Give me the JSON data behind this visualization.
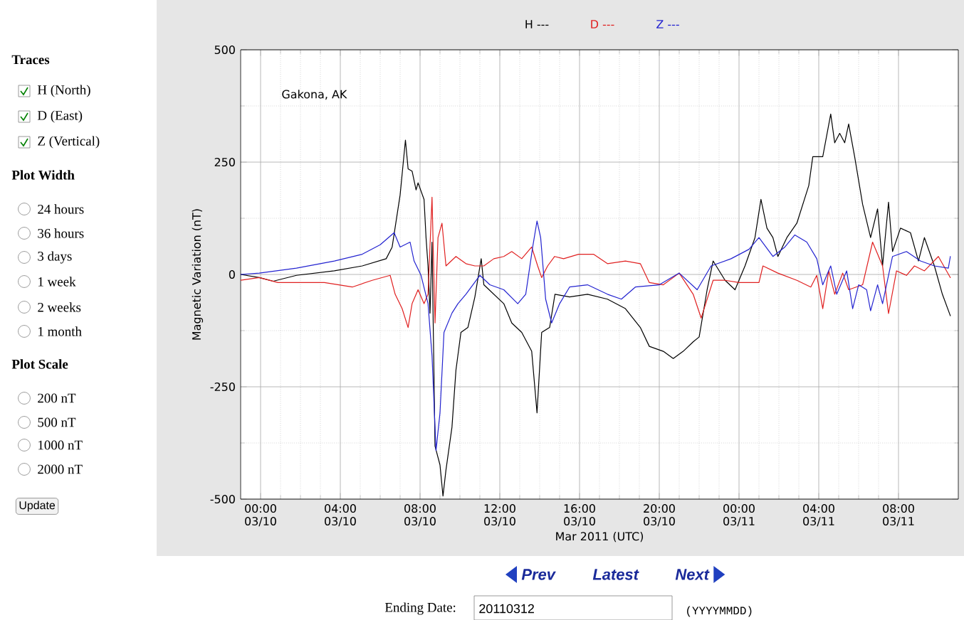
{
  "chart_data": [
    {
      "type": "line",
      "xlabel": "Mar 2011 (UTC)",
      "ylabel": "Magnetic Variation (nT)",
      "annotations": [
        "Gakona, AK"
      ],
      "xlim": [
        "2011-03-09T23:00",
        "2011-03-11T11:00"
      ],
      "ylim": [
        -500,
        500
      ],
      "xticks": [
        {
          "value": "2011-03-10T00:00",
          "label": "00:00 03/10"
        },
        {
          "value": "2011-03-10T04:00",
          "label": "04:00 03/10"
        },
        {
          "value": "2011-03-10T08:00",
          "label": "08:00 03/10"
        },
        {
          "value": "2011-03-10T12:00",
          "label": "12:00 03/10"
        },
        {
          "value": "2011-03-10T16:00",
          "label": "16:00 03/10"
        },
        {
          "value": "2011-03-10T20:00",
          "label": "20:00 03/10"
        },
        {
          "value": "2011-03-11T00:00",
          "label": "00:00 03/11"
        },
        {
          "value": "2011-03-11T04:00",
          "label": "04:00 03/11"
        },
        {
          "value": "2011-03-11T08:00",
          "label": "08:00 03/11"
        }
      ],
      "yticks": [
        -500,
        -250,
        0,
        250,
        500
      ],
      "grid": true,
      "legend": "top",
      "series": [
        {
          "name": "H ---",
          "color": "#000000",
          "x": [
            "2011-03-09T23:00",
            "2011-03-09T23:56",
            "2011-03-10T00:38",
            "2011-03-10T01:48",
            "2011-03-10T03:42",
            "2011-03-10T05:06",
            "2011-03-10T06:18",
            "2011-03-10T06:36",
            "2011-03-10T07:00",
            "2011-03-10T07:16",
            "2011-03-10T07:24",
            "2011-03-10T07:36",
            "2011-03-10T07:48",
            "2011-03-10T07:54",
            "2011-03-10T08:12",
            "2011-03-10T08:18",
            "2011-03-10T08:24",
            "2011-03-10T08:30",
            "2011-03-10T08:36",
            "2011-03-10T08:45",
            "2011-03-10T09:00",
            "2011-03-10T09:09",
            "2011-03-10T09:18",
            "2011-03-10T09:36",
            "2011-03-10T09:48",
            "2011-03-10T10:03",
            "2011-03-10T10:24",
            "2011-03-10T10:45",
            "2011-03-10T11:04",
            "2011-03-10T11:12",
            "2011-03-10T11:42",
            "2011-03-10T12:12",
            "2011-03-10T12:36",
            "2011-03-10T13:06",
            "2011-03-10T13:36",
            "2011-03-10T13:52",
            "2011-03-10T14:06",
            "2011-03-10T14:30",
            "2011-03-10T14:46",
            "2011-03-10T15:30",
            "2011-03-10T16:24",
            "2011-03-10T17:24",
            "2011-03-10T18:18",
            "2011-03-10T19:03",
            "2011-03-10T19:30",
            "2011-03-10T20:12",
            "2011-03-10T20:42",
            "2011-03-10T21:12",
            "2011-03-10T21:42",
            "2011-03-10T22:00",
            "2011-03-10T22:24",
            "2011-03-10T22:42",
            "2011-03-10T23:18",
            "2011-03-10T23:48",
            "2011-03-11T00:18",
            "2011-03-11T00:48",
            "2011-03-11T01:06",
            "2011-03-11T01:24",
            "2011-03-11T01:42",
            "2011-03-11T01:57",
            "2011-03-11T02:24",
            "2011-03-11T02:54",
            "2011-03-11T03:30",
            "2011-03-11T03:42",
            "2011-03-11T04:12",
            "2011-03-11T04:36",
            "2011-03-11T04:48",
            "2011-03-11T05:03",
            "2011-03-11T05:18",
            "2011-03-11T05:30",
            "2011-03-11T05:48",
            "2011-03-11T06:12",
            "2011-03-11T06:36",
            "2011-03-11T06:57",
            "2011-03-11T07:12",
            "2011-03-11T07:30",
            "2011-03-11T07:42",
            "2011-03-11T08:06",
            "2011-03-11T08:36",
            "2011-03-11T09:00",
            "2011-03-11T09:18",
            "2011-03-11T09:48",
            "2011-03-11T10:12",
            "2011-03-11T10:36"
          ],
          "values": [
            0,
            -7,
            -15,
            -2,
            8,
            19,
            35,
            61,
            177,
            299,
            235,
            230,
            188,
            204,
            167,
            82,
            19,
            -86,
            72,
            -382,
            -424,
            -493,
            -435,
            -340,
            -213,
            -129,
            -118,
            -50,
            35,
            -23,
            -44,
            -65,
            -108,
            -129,
            -171,
            -308,
            -129,
            -118,
            -44,
            -50,
            -44,
            -55,
            -76,
            -118,
            -160,
            -171,
            -187,
            -171,
            -150,
            -139,
            -34,
            30,
            -13,
            -34,
            19,
            82,
            167,
            103,
            82,
            40,
            82,
            114,
            198,
            262,
            262,
            357,
            293,
            314,
            293,
            335,
            262,
            156,
            82,
            146,
            19,
            161,
            51,
            103,
            93,
            30,
            82,
            19,
            -44,
            -92
          ]
        },
        {
          "name": "D ---",
          "color": "#e02020",
          "x": [
            "2011-03-09T23:00",
            "2011-03-09T23:56",
            "2011-03-10T00:52",
            "2011-03-10T01:48",
            "2011-03-10T03:12",
            "2011-03-10T04:36",
            "2011-03-10T05:36",
            "2011-03-10T06:30",
            "2011-03-10T06:45",
            "2011-03-10T07:06",
            "2011-03-10T07:24",
            "2011-03-10T07:36",
            "2011-03-10T07:54",
            "2011-03-10T08:12",
            "2011-03-10T08:24",
            "2011-03-10T08:36",
            "2011-03-10T08:45",
            "2011-03-10T08:54",
            "2011-03-10T09:06",
            "2011-03-10T09:18",
            "2011-03-10T09:48",
            "2011-03-10T10:18",
            "2011-03-10T10:45",
            "2011-03-10T11:12",
            "2011-03-10T11:42",
            "2011-03-10T12:12",
            "2011-03-10T12:36",
            "2011-03-10T13:06",
            "2011-03-10T13:36",
            "2011-03-10T13:54",
            "2011-03-10T14:06",
            "2011-03-10T14:24",
            "2011-03-10T14:45",
            "2011-03-10T15:12",
            "2011-03-10T15:57",
            "2011-03-10T16:42",
            "2011-03-10T17:24",
            "2011-03-10T18:18",
            "2011-03-10T19:03",
            "2011-03-10T19:30",
            "2011-03-10T20:12",
            "2011-03-10T21:00",
            "2011-03-10T21:42",
            "2011-03-10T22:06",
            "2011-03-10T22:42",
            "2011-03-10T23:18",
            "2011-03-11T00:00",
            "2011-03-11T01:00",
            "2011-03-11T01:12",
            "2011-03-11T01:57",
            "2011-03-11T02:54",
            "2011-03-11T03:36",
            "2011-03-11T03:54",
            "2011-03-11T04:12",
            "2011-03-11T04:30",
            "2011-03-11T04:48",
            "2011-03-11T05:12",
            "2011-03-11T05:30",
            "2011-03-11T06:12",
            "2011-03-11T06:42",
            "2011-03-11T07:12",
            "2011-03-11T07:30",
            "2011-03-11T07:54",
            "2011-03-11T08:24",
            "2011-03-11T08:48",
            "2011-03-11T09:18",
            "2011-03-11T10:00",
            "2011-03-11T10:36"
          ],
          "values": [
            -13,
            -7,
            -18,
            -18,
            -18,
            -28,
            -13,
            -2,
            -44,
            -76,
            -118,
            -65,
            -34,
            -65,
            -44,
            172,
            -108,
            82,
            114,
            19,
            40,
            24,
            19,
            19,
            35,
            40,
            51,
            35,
            61,
            19,
            -7,
            19,
            40,
            35,
            45,
            45,
            24,
            30,
            24,
            -18,
            -23,
            3,
            -44,
            -97,
            -13,
            -13,
            -18,
            -18,
            19,
            3,
            -13,
            -28,
            -2,
            -76,
            8,
            -44,
            3,
            -34,
            -23,
            72,
            19,
            -87,
            8,
            -2,
            19,
            8,
            40,
            -7
          ]
        },
        {
          "name": "Z ---",
          "color": "#2323d0",
          "x": [
            "2011-03-09T23:00",
            "2011-03-09T23:56",
            "2011-03-10T01:48",
            "2011-03-10T03:42",
            "2011-03-10T05:06",
            "2011-03-10T06:00",
            "2011-03-10T06:42",
            "2011-03-10T07:00",
            "2011-03-10T07:30",
            "2011-03-10T07:42",
            "2011-03-10T08:03",
            "2011-03-10T08:24",
            "2011-03-10T08:36",
            "2011-03-10T08:48",
            "2011-03-10T09:00",
            "2011-03-10T09:12",
            "2011-03-10T09:36",
            "2011-03-10T09:54",
            "2011-03-10T10:18",
            "2011-03-10T11:00",
            "2011-03-10T11:30",
            "2011-03-10T12:12",
            "2011-03-10T12:54",
            "2011-03-10T13:18",
            "2011-03-10T13:39",
            "2011-03-10T13:52",
            "2011-03-10T14:03",
            "2011-03-10T14:18",
            "2011-03-10T14:36",
            "2011-03-10T15:00",
            "2011-03-10T15:30",
            "2011-03-10T16:24",
            "2011-03-10T17:24",
            "2011-03-10T18:06",
            "2011-03-10T18:48",
            "2011-03-10T20:00",
            "2011-03-10T21:00",
            "2011-03-10T21:54",
            "2011-03-10T22:36",
            "2011-03-10T23:36",
            "2011-03-11T00:30",
            "2011-03-11T01:00",
            "2011-03-11T01:42",
            "2011-03-11T02:18",
            "2011-03-11T02:48",
            "2011-03-11T03:24",
            "2011-03-11T03:54",
            "2011-03-11T04:12",
            "2011-03-11T04:36",
            "2011-03-11T04:54",
            "2011-03-11T05:24",
            "2011-03-11T05:42",
            "2011-03-11T06:00",
            "2011-03-11T06:24",
            "2011-03-11T06:36",
            "2011-03-11T06:57",
            "2011-03-11T07:12",
            "2011-03-11T07:42",
            "2011-03-11T08:24",
            "2011-03-11T09:06",
            "2011-03-11T09:48",
            "2011-03-11T10:30",
            "2011-03-11T10:36"
          ],
          "values": [
            0,
            3,
            14,
            30,
            45,
            66,
            93,
            61,
            72,
            30,
            -2,
            -65,
            -181,
            -392,
            -308,
            -129,
            -86,
            -65,
            -44,
            -2,
            -23,
            -34,
            -65,
            -44,
            61,
            119,
            82,
            -55,
            -108,
            -65,
            -28,
            -23,
            -44,
            -55,
            -28,
            -23,
            3,
            -34,
            19,
            35,
            56,
            82,
            40,
            61,
            88,
            72,
            35,
            -23,
            19,
            -44,
            8,
            -76,
            -23,
            -34,
            -81,
            -23,
            -65,
            40,
            51,
            30,
            19,
            14,
            40
          ]
        }
      ]
    },
    {
      "type": "other",
      "annotations": [
        "Traces",
        "H (North)",
        "D (East)",
        "Z (Vertical)",
        "Plot Width",
        "24 hours",
        "36 hours",
        "3 days",
        "1 week",
        "2 weeks",
        "1 month",
        "Plot Scale",
        "200 nT",
        "500 nT",
        "1000 nT",
        "2000 nT",
        "Update",
        "Prev",
        "Latest",
        "Next",
        "Ending Date:",
        "20110312",
        "(YYYYMMDD)"
      ]
    }
  ]
}
